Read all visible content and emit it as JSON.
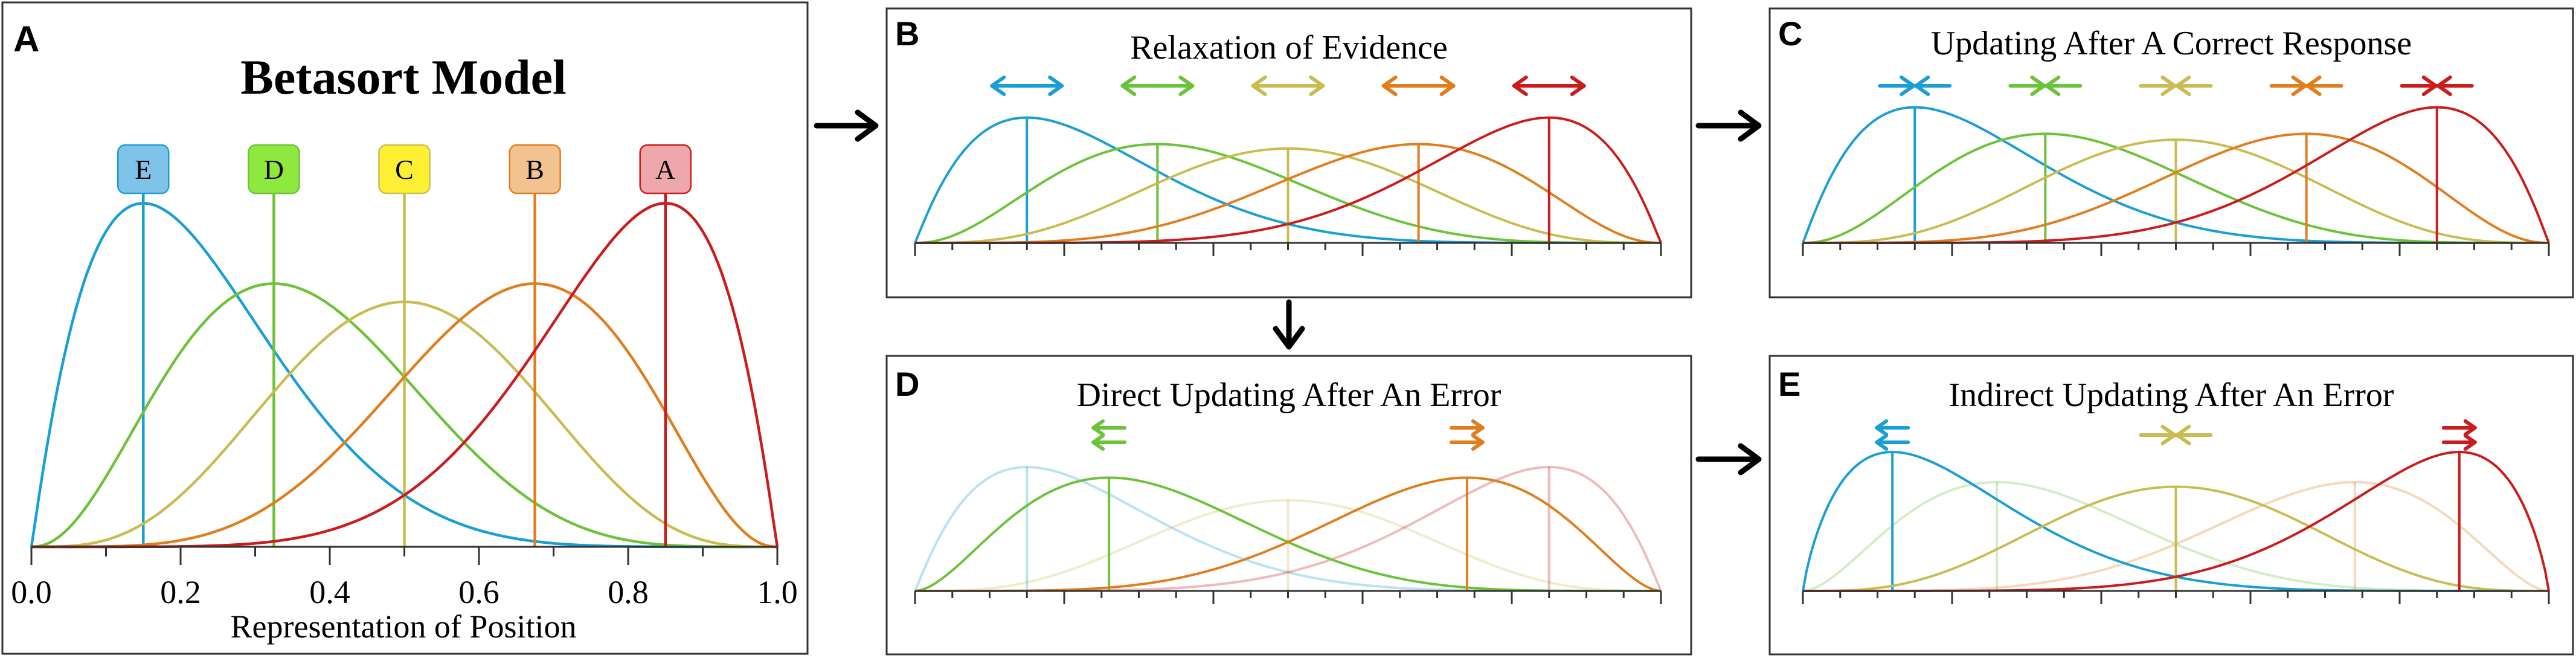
{
  "panel_letters": {
    "a": "A",
    "b": "B",
    "c": "C",
    "d": "D",
    "e": "E"
  },
  "panel_a": {
    "title": "Betasort Model",
    "xlabel": "Representation of Position",
    "tick_labels": [
      "0.0",
      "0.2",
      "0.4",
      "0.6",
      "0.8",
      "1.0"
    ],
    "stimulus_labels": [
      "E",
      "D",
      "C",
      "B",
      "A"
    ]
  },
  "panel_b": {
    "title": "Relaxation of Evidence"
  },
  "panel_c": {
    "title": "Updating After A Correct Response"
  },
  "panel_d": {
    "title": "Direct Updating After An Error"
  },
  "panel_e": {
    "title": "Indirect Updating After An Error"
  },
  "colors": {
    "E": "#1a9fd5",
    "D": "#6cc33a",
    "C": "#c9bd52",
    "B": "#e07e1e",
    "A": "#cc1b1b",
    "box_E": "#7fc3e8",
    "box_D": "#8ee83e",
    "box_C": "#ffef33",
    "box_B": "#f2c38f",
    "box_A": "#eea7aa",
    "frame": "#333333"
  },
  "chart_data": [
    {
      "type": "line",
      "panel": "A",
      "title": "Betasort Model",
      "xlabel": "Representation of Position",
      "xlim": [
        0,
        1
      ],
      "x_ticks": [
        0.0,
        0.2,
        0.4,
        0.6,
        0.8,
        1.0
      ],
      "series": [
        {
          "name": "E",
          "mode": 0.15,
          "peak": 0.94
        },
        {
          "name": "D",
          "mode": 0.325,
          "peak": 0.72
        },
        {
          "name": "C",
          "mode": 0.5,
          "peak": 0.67
        },
        {
          "name": "B",
          "mode": 0.675,
          "peak": 0.72
        },
        {
          "name": "A",
          "mode": 0.85,
          "peak": 0.94
        }
      ]
    },
    {
      "type": "line",
      "panel": "B",
      "title": "Relaxation of Evidence",
      "series": [
        {
          "name": "E",
          "mode": 0.15,
          "peak": 0.85,
          "arrow": "expand"
        },
        {
          "name": "D",
          "mode": 0.325,
          "peak": 0.67,
          "arrow": "expand"
        },
        {
          "name": "C",
          "mode": 0.5,
          "peak": 0.64,
          "arrow": "expand"
        },
        {
          "name": "B",
          "mode": 0.675,
          "peak": 0.67,
          "arrow": "expand"
        },
        {
          "name": "A",
          "mode": 0.85,
          "peak": 0.85,
          "arrow": "expand"
        }
      ]
    },
    {
      "type": "line",
      "panel": "C",
      "title": "Updating After A Correct Response",
      "series": [
        {
          "name": "E",
          "mode": 0.15,
          "peak": 0.92,
          "arrow": "contract"
        },
        {
          "name": "D",
          "mode": 0.325,
          "peak": 0.74,
          "arrow": "contract"
        },
        {
          "name": "C",
          "mode": 0.5,
          "peak": 0.7,
          "arrow": "contract"
        },
        {
          "name": "B",
          "mode": 0.675,
          "peak": 0.74,
          "arrow": "contract"
        },
        {
          "name": "A",
          "mode": 0.85,
          "peak": 0.92,
          "arrow": "contract"
        }
      ]
    },
    {
      "type": "line",
      "panel": "D",
      "title": "Direct Updating After An Error",
      "series": [
        {
          "name": "E",
          "mode": 0.15,
          "peak": 0.82,
          "faded": true
        },
        {
          "name": "D",
          "mode": 0.26,
          "peak": 0.75,
          "arrow": "left"
        },
        {
          "name": "C",
          "mode": 0.5,
          "peak": 0.6,
          "faded": true
        },
        {
          "name": "B",
          "mode": 0.74,
          "peak": 0.75,
          "arrow": "right"
        },
        {
          "name": "A",
          "mode": 0.85,
          "peak": 0.82,
          "faded": true
        }
      ]
    },
    {
      "type": "line",
      "panel": "E",
      "title": "Indirect Updating After An Error",
      "series": [
        {
          "name": "E",
          "mode": 0.12,
          "peak": 0.92,
          "arrow": "left"
        },
        {
          "name": "D",
          "mode": 0.26,
          "peak": 0.72,
          "faded": true
        },
        {
          "name": "C",
          "mode": 0.5,
          "peak": 0.69,
          "arrow": "contract"
        },
        {
          "name": "B",
          "mode": 0.74,
          "peak": 0.72,
          "faded": true
        },
        {
          "name": "A",
          "mode": 0.88,
          "peak": 0.92,
          "arrow": "right"
        }
      ]
    }
  ]
}
